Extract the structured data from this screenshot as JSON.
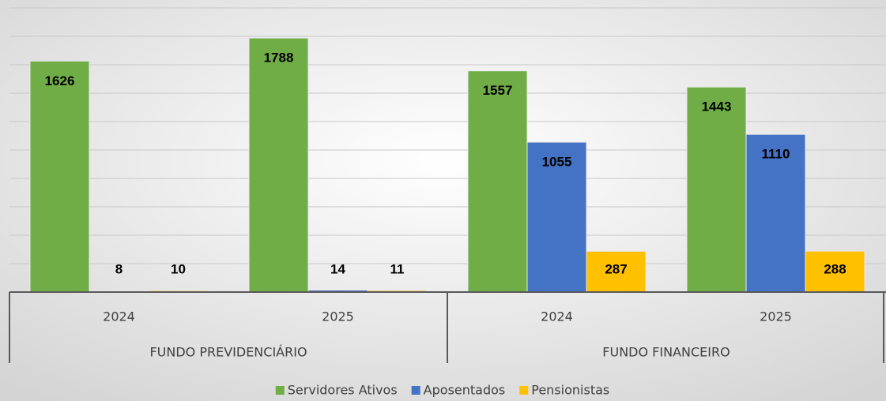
{
  "chart_data": {
    "type": "bar",
    "categories": [
      "2024",
      "2025",
      "2024",
      "2025"
    ],
    "groups": [
      "FUNDO PREVIDENCIÁRIO",
      "FUNDO FINANCEIRO"
    ],
    "series": [
      {
        "name": "Servidores Ativos",
        "color": "#70ad47",
        "values": [
          1626,
          1788,
          1557,
          1443
        ]
      },
      {
        "name": "Aposentados",
        "color": "#4472c4",
        "values": [
          8,
          14,
          1055,
          1110
        ]
      },
      {
        "name": "Pensionistas",
        "color": "#ffc000",
        "values": [
          10,
          11,
          287,
          288
        ]
      }
    ],
    "ylim": [
      0,
      2000
    ],
    "yticks": [
      0,
      200,
      400,
      600,
      800,
      1000,
      1200,
      1400,
      1600,
      1800,
      2000
    ],
    "grid": true,
    "legend": "bottom"
  }
}
